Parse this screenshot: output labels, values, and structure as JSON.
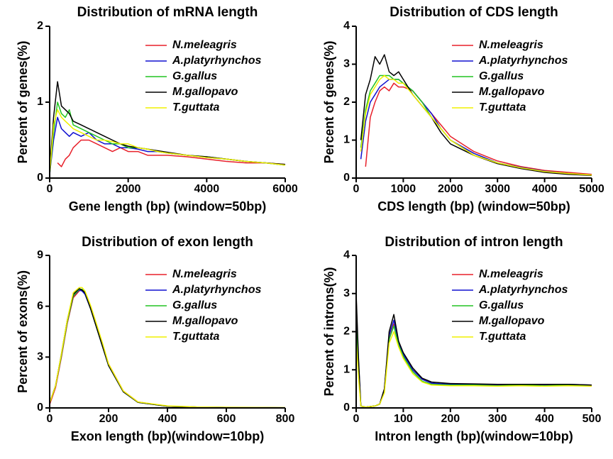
{
  "chart_data": [
    {
      "type": "line",
      "title": "Distribution of mRNA length",
      "x_label": "Gene length (bp) (window=50bp)",
      "y_label": "Percent of genes(%)",
      "x": [
        0,
        100,
        200,
        300,
        400,
        500,
        600,
        800,
        1000,
        1200,
        1400,
        1600,
        1800,
        2000,
        2250,
        2500,
        2750,
        3000,
        3500,
        4000,
        4500,
        5000,
        5500,
        6000
      ],
      "xlim": [
        0,
        6000
      ],
      "xticks": [
        0,
        2000,
        4000,
        6000
      ],
      "ylim": [
        0,
        2
      ],
      "yticks": [
        0,
        1,
        2
      ],
      "series": [
        {
          "name": "N.meleagris",
          "color": "#e8202a",
          "values": [
            null,
            null,
            0.2,
            0.15,
            0.25,
            0.3,
            0.4,
            0.5,
            0.5,
            0.45,
            0.4,
            0.35,
            0.4,
            0.35,
            0.35,
            0.3,
            0.3,
            0.3,
            0.28,
            0.25,
            0.22,
            0.2,
            0.2,
            0.18
          ]
        },
        {
          "name": "A.platyrhynchos",
          "color": "#1010d0",
          "values": [
            0.05,
            0.5,
            0.8,
            0.65,
            0.6,
            0.55,
            0.6,
            0.55,
            0.6,
            0.5,
            0.45,
            0.45,
            0.4,
            0.4,
            0.38,
            0.35,
            0.35,
            0.33,
            0.3,
            0.27,
            0.25,
            0.22,
            0.2,
            0.17
          ]
        },
        {
          "name": "G.gallus",
          "color": "#22c422",
          "values": [
            0.05,
            0.6,
            1.0,
            0.85,
            0.8,
            0.9,
            0.7,
            0.65,
            0.6,
            0.55,
            0.5,
            0.45,
            0.45,
            0.4,
            0.4,
            0.38,
            0.35,
            0.33,
            0.3,
            0.28,
            0.25,
            0.22,
            0.2,
            0.17
          ]
        },
        {
          "name": "M.gallopavo",
          "color": "#000000",
          "values": [
            0.1,
            0.8,
            1.27,
            0.95,
            0.9,
            0.85,
            0.75,
            0.7,
            0.65,
            0.6,
            0.55,
            0.5,
            0.45,
            0.42,
            0.4,
            0.38,
            0.36,
            0.34,
            0.3,
            0.28,
            0.25,
            0.22,
            0.2,
            0.18
          ]
        },
        {
          "name": "T.guttata",
          "color": "#f0f000",
          "values": [
            0.05,
            0.7,
            0.9,
            0.8,
            0.75,
            0.7,
            0.65,
            0.6,
            0.55,
            0.5,
            0.5,
            0.48,
            0.45,
            0.45,
            0.4,
            0.38,
            0.35,
            0.33,
            0.3,
            0.27,
            0.25,
            0.22,
            0.2,
            0.17
          ]
        }
      ]
    },
    {
      "type": "line",
      "title": "Distribution of CDS length",
      "x_label": "CDS length (bp) (window=50bp)",
      "y_label": "Percent of genes(%)",
      "x": [
        100,
        200,
        300,
        400,
        500,
        600,
        700,
        800,
        900,
        1000,
        1200,
        1400,
        1600,
        1800,
        2000,
        2500,
        3000,
        3500,
        4000,
        4500,
        5000
      ],
      "xlim": [
        0,
        5000
      ],
      "xticks": [
        0,
        1000,
        2000,
        3000,
        4000,
        5000
      ],
      "ylim": [
        0,
        4
      ],
      "yticks": [
        0,
        1,
        2,
        3,
        4
      ],
      "series": [
        {
          "name": "N.meleagris",
          "color": "#e8202a",
          "values": [
            null,
            0.3,
            1.6,
            2.0,
            2.3,
            2.4,
            2.3,
            2.5,
            2.4,
            2.4,
            2.3,
            2.0,
            1.7,
            1.4,
            1.1,
            0.7,
            0.45,
            0.3,
            0.2,
            0.15,
            0.1
          ]
        },
        {
          "name": "A.platyrhynchos",
          "color": "#1010d0",
          "values": [
            0.5,
            1.5,
            2.0,
            2.2,
            2.4,
            2.5,
            2.6,
            2.6,
            2.6,
            2.5,
            2.3,
            2.0,
            1.7,
            1.3,
            1.0,
            0.65,
            0.4,
            0.28,
            0.18,
            0.12,
            0.08
          ]
        },
        {
          "name": "G.gallus",
          "color": "#22c422",
          "values": [
            0.8,
            1.8,
            2.3,
            2.5,
            2.7,
            2.7,
            2.7,
            2.6,
            2.6,
            2.5,
            2.3,
            2.0,
            1.6,
            1.3,
            1.0,
            0.6,
            0.4,
            0.27,
            0.17,
            0.12,
            0.08
          ]
        },
        {
          "name": "M.gallopavo",
          "color": "#000000",
          "values": [
            1.0,
            2.2,
            2.6,
            3.2,
            3.0,
            3.25,
            2.8,
            2.7,
            2.8,
            2.6,
            2.2,
            1.9,
            1.6,
            1.2,
            0.9,
            0.6,
            0.38,
            0.25,
            0.15,
            0.1,
            0.07
          ]
        },
        {
          "name": "T.guttata",
          "color": "#f0f000",
          "values": [
            0.7,
            1.7,
            2.2,
            2.4,
            2.6,
            2.7,
            2.6,
            2.6,
            2.5,
            2.5,
            2.2,
            1.9,
            1.6,
            1.3,
            1.0,
            0.6,
            0.4,
            0.27,
            0.17,
            0.12,
            0.08
          ]
        }
      ]
    },
    {
      "type": "line",
      "title": "Distribution of exon length",
      "x_label": "Exon length (bp)(window=10bp)",
      "y_label": "Percent of exons(%)",
      "x": [
        0,
        20,
        40,
        60,
        80,
        100,
        110,
        120,
        140,
        160,
        180,
        200,
        250,
        300,
        400,
        500,
        600,
        700,
        800
      ],
      "xlim": [
        0,
        800
      ],
      "xticks": [
        0,
        200,
        400,
        600,
        800
      ],
      "ylim": [
        0,
        9
      ],
      "yticks": [
        0,
        3,
        6,
        9
      ],
      "series": [
        {
          "name": "N.meleagris",
          "color": "#e8202a",
          "values": [
            0.2,
            1.2,
            3.0,
            5.0,
            6.5,
            6.9,
            7.0,
            6.8,
            5.9,
            4.8,
            3.7,
            2.6,
            1.0,
            0.35,
            0.1,
            0.05,
            0.03,
            0.02,
            0.01
          ]
        },
        {
          "name": "A.platyrhynchos",
          "color": "#1010d0",
          "values": [
            0.3,
            1.3,
            3.1,
            5.1,
            6.6,
            6.95,
            6.9,
            6.7,
            5.8,
            4.7,
            3.6,
            2.5,
            0.95,
            0.33,
            0.1,
            0.05,
            0.03,
            0.02,
            0.01
          ]
        },
        {
          "name": "G.gallus",
          "color": "#22c422",
          "values": [
            0.3,
            1.3,
            3.1,
            5.1,
            6.6,
            7.0,
            7.0,
            6.8,
            5.8,
            4.7,
            3.6,
            2.5,
            0.95,
            0.33,
            0.1,
            0.05,
            0.03,
            0.02,
            0.01
          ]
        },
        {
          "name": "M.gallopavo",
          "color": "#000000",
          "values": [
            0.3,
            1.3,
            3.2,
            5.2,
            6.7,
            7.05,
            6.95,
            6.8,
            5.8,
            4.7,
            3.6,
            2.5,
            0.95,
            0.33,
            0.1,
            0.05,
            0.03,
            0.02,
            0.01
          ]
        },
        {
          "name": "T.guttata",
          "color": "#f0f000",
          "values": [
            0.3,
            1.3,
            3.2,
            5.2,
            6.8,
            7.1,
            7.1,
            6.9,
            6.0,
            4.9,
            3.8,
            2.6,
            1.0,
            0.35,
            0.12,
            0.06,
            0.04,
            0.03,
            0.02
          ]
        }
      ]
    },
    {
      "type": "line",
      "title": "Distribution of intron length",
      "x_label": "Intron length (bp)(window=10bp)",
      "y_label": "Percent of introns(%)",
      "x": [
        0,
        5,
        10,
        20,
        40,
        50,
        60,
        70,
        80,
        90,
        100,
        120,
        140,
        160,
        200,
        250,
        300,
        350,
        400,
        450,
        500
      ],
      "xlim": [
        0,
        500
      ],
      "xticks": [
        0,
        100,
        200,
        300,
        400,
        500
      ],
      "ylim": [
        0,
        4
      ],
      "yticks": [
        0,
        1,
        2,
        3,
        4
      ],
      "series": [
        {
          "name": "N.meleagris",
          "color": "#e8202a",
          "values": [
            2.9,
            1.0,
            0.05,
            0.02,
            0.05,
            0.1,
            0.5,
            1.8,
            2.2,
            1.7,
            1.4,
            1.0,
            0.75,
            0.65,
            0.6,
            0.6,
            0.6,
            0.6,
            0.6,
            0.6,
            0.58
          ]
        },
        {
          "name": "A.platyrhynchos",
          "color": "#1010d0",
          "values": [
            2.5,
            1.2,
            0.05,
            0.02,
            0.05,
            0.1,
            0.5,
            1.9,
            2.3,
            1.7,
            1.4,
            1.0,
            0.75,
            0.65,
            0.62,
            0.62,
            0.6,
            0.62,
            0.6,
            0.62,
            0.6
          ]
        },
        {
          "name": "G.gallus",
          "color": "#22c422",
          "values": [
            2.2,
            1.0,
            0.05,
            0.02,
            0.05,
            0.1,
            0.45,
            1.8,
            2.15,
            1.65,
            1.35,
            0.95,
            0.7,
            0.62,
            0.6,
            0.6,
            0.58,
            0.6,
            0.58,
            0.6,
            0.6
          ]
        },
        {
          "name": "M.gallopavo",
          "color": "#000000",
          "values": [
            3.0,
            1.3,
            0.05,
            0.02,
            0.05,
            0.1,
            0.5,
            2.0,
            2.45,
            1.75,
            1.45,
            1.05,
            0.78,
            0.68,
            0.64,
            0.63,
            0.62,
            0.62,
            0.62,
            0.62,
            0.6
          ]
        },
        {
          "name": "T.guttata",
          "color": "#f0f000",
          "values": [
            1.8,
            0.8,
            0.05,
            0.02,
            0.05,
            0.1,
            0.4,
            1.7,
            2.0,
            1.6,
            1.3,
            0.9,
            0.68,
            0.6,
            0.58,
            0.58,
            0.57,
            0.58,
            0.57,
            0.58,
            0.57
          ]
        }
      ]
    }
  ]
}
